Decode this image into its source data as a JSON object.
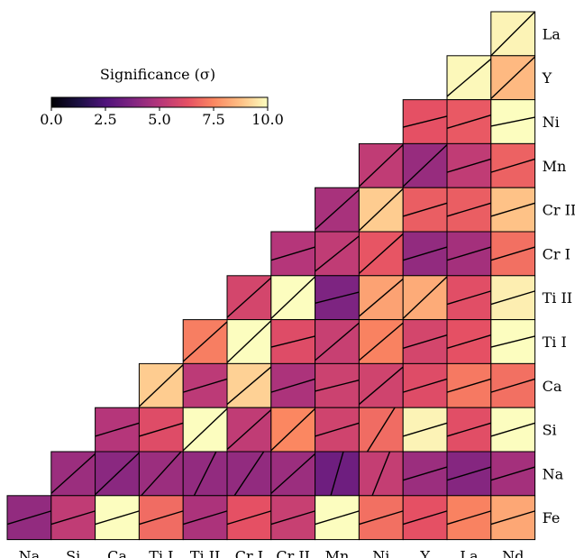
{
  "chart_data": {
    "type": "heatmap",
    "layout": "lower-triangle",
    "x_labels": [
      "Na",
      "Si",
      "Ca",
      "Ti I",
      "Ti II",
      "Cr I",
      "Cr II",
      "Mn",
      "Ni",
      "Y",
      "La",
      "Nd"
    ],
    "y_labels": [
      "La",
      "Y",
      "Ni",
      "Mn",
      "Cr II",
      "Cr I",
      "Ti II",
      "Ti I",
      "Ca",
      "Si",
      "Na",
      "Fe"
    ],
    "colorbar": {
      "title": "Significance (σ)",
      "colormap": "magma",
      "range": [
        0.0,
        10.0
      ],
      "ticks": [
        "0.0",
        "2.5",
        "5.0",
        "7.5",
        "10.0"
      ]
    },
    "cells": [
      [
        null,
        null,
        null,
        null,
        null,
        null,
        null,
        null,
        null,
        null,
        null,
        9.8
      ],
      [
        null,
        null,
        null,
        null,
        null,
        null,
        null,
        null,
        null,
        null,
        9.9,
        8.6
      ],
      [
        null,
        null,
        null,
        null,
        null,
        null,
        null,
        null,
        null,
        6.3,
        6.5,
        10.0
      ],
      [
        null,
        null,
        null,
        null,
        null,
        null,
        null,
        null,
        5.3,
        4.3,
        5.3,
        6.7
      ],
      [
        null,
        null,
        null,
        null,
        null,
        null,
        null,
        4.7,
        9.0,
        6.6,
        6.6,
        8.8
      ],
      [
        null,
        null,
        null,
        null,
        null,
        null,
        5.0,
        5.3,
        6.4,
        4.2,
        4.6,
        7.0
      ],
      [
        null,
        null,
        null,
        null,
        null,
        5.8,
        10.0,
        3.7,
        8.1,
        8.3,
        6.2,
        9.7
      ],
      [
        null,
        null,
        null,
        null,
        7.3,
        10.0,
        6.1,
        5.5,
        7.4,
        5.8,
        6.3,
        10.0
      ],
      [
        null,
        null,
        null,
        9.0,
        5.2,
        9.1,
        4.8,
        5.6,
        5.7,
        6.1,
        7.2,
        7.0
      ],
      [
        null,
        null,
        5.0,
        6.1,
        10.0,
        5.3,
        7.5,
        5.7,
        6.9,
        9.8,
        6.2,
        10.0
      ],
      [
        null,
        4.4,
        4.0,
        4.4,
        4.2,
        4.2,
        4.4,
        3.3,
        5.4,
        4.4,
        3.9,
        4.6
      ],
      [
        4.2,
        5.3,
        10.0,
        6.9,
        4.8,
        6.3,
        5.5,
        10.0,
        7.0,
        6.3,
        7.4,
        8.2
      ]
    ],
    "slopes": [
      [
        null,
        null,
        null,
        null,
        null,
        null,
        null,
        null,
        null,
        null,
        null,
        1.0
      ],
      [
        null,
        null,
        null,
        null,
        null,
        null,
        null,
        null,
        null,
        null,
        0.85,
        0.95
      ],
      [
        null,
        null,
        null,
        null,
        null,
        null,
        null,
        null,
        null,
        0.25,
        0.3,
        0.2
      ],
      [
        null,
        null,
        null,
        null,
        null,
        null,
        null,
        null,
        0.95,
        0.95,
        0.3,
        0.3
      ],
      [
        null,
        null,
        null,
        null,
        null,
        null,
        null,
        0.9,
        0.95,
        0.3,
        0.3,
        0.3
      ],
      [
        null,
        null,
        null,
        null,
        null,
        null,
        0.3,
        0.8,
        0.9,
        0.3,
        0.3,
        0.3
      ],
      [
        null,
        null,
        null,
        null,
        null,
        0.9,
        0.95,
        0.25,
        0.85,
        0.95,
        0.3,
        0.3
      ],
      [
        null,
        null,
        null,
        null,
        0.9,
        0.95,
        0.25,
        0.85,
        0.85,
        0.3,
        0.3,
        0.25
      ],
      [
        null,
        null,
        null,
        0.95,
        0.3,
        0.85,
        0.3,
        0.25,
        0.85,
        0.3,
        0.3,
        0.3
      ],
      [
        null,
        null,
        0.3,
        0.3,
        0.95,
        0.9,
        0.95,
        0.3,
        1.6,
        0.3,
        0.3,
        0.3
      ],
      [
        null,
        0.9,
        0.95,
        1.1,
        2.0,
        1.5,
        0.9,
        3.5,
        2.5,
        0.3,
        0.3,
        0.3
      ],
      [
        0.3,
        0.3,
        0.3,
        0.3,
        0.3,
        0.3,
        0.3,
        0.3,
        0.3,
        0.3,
        0.3,
        0.3
      ]
    ]
  }
}
